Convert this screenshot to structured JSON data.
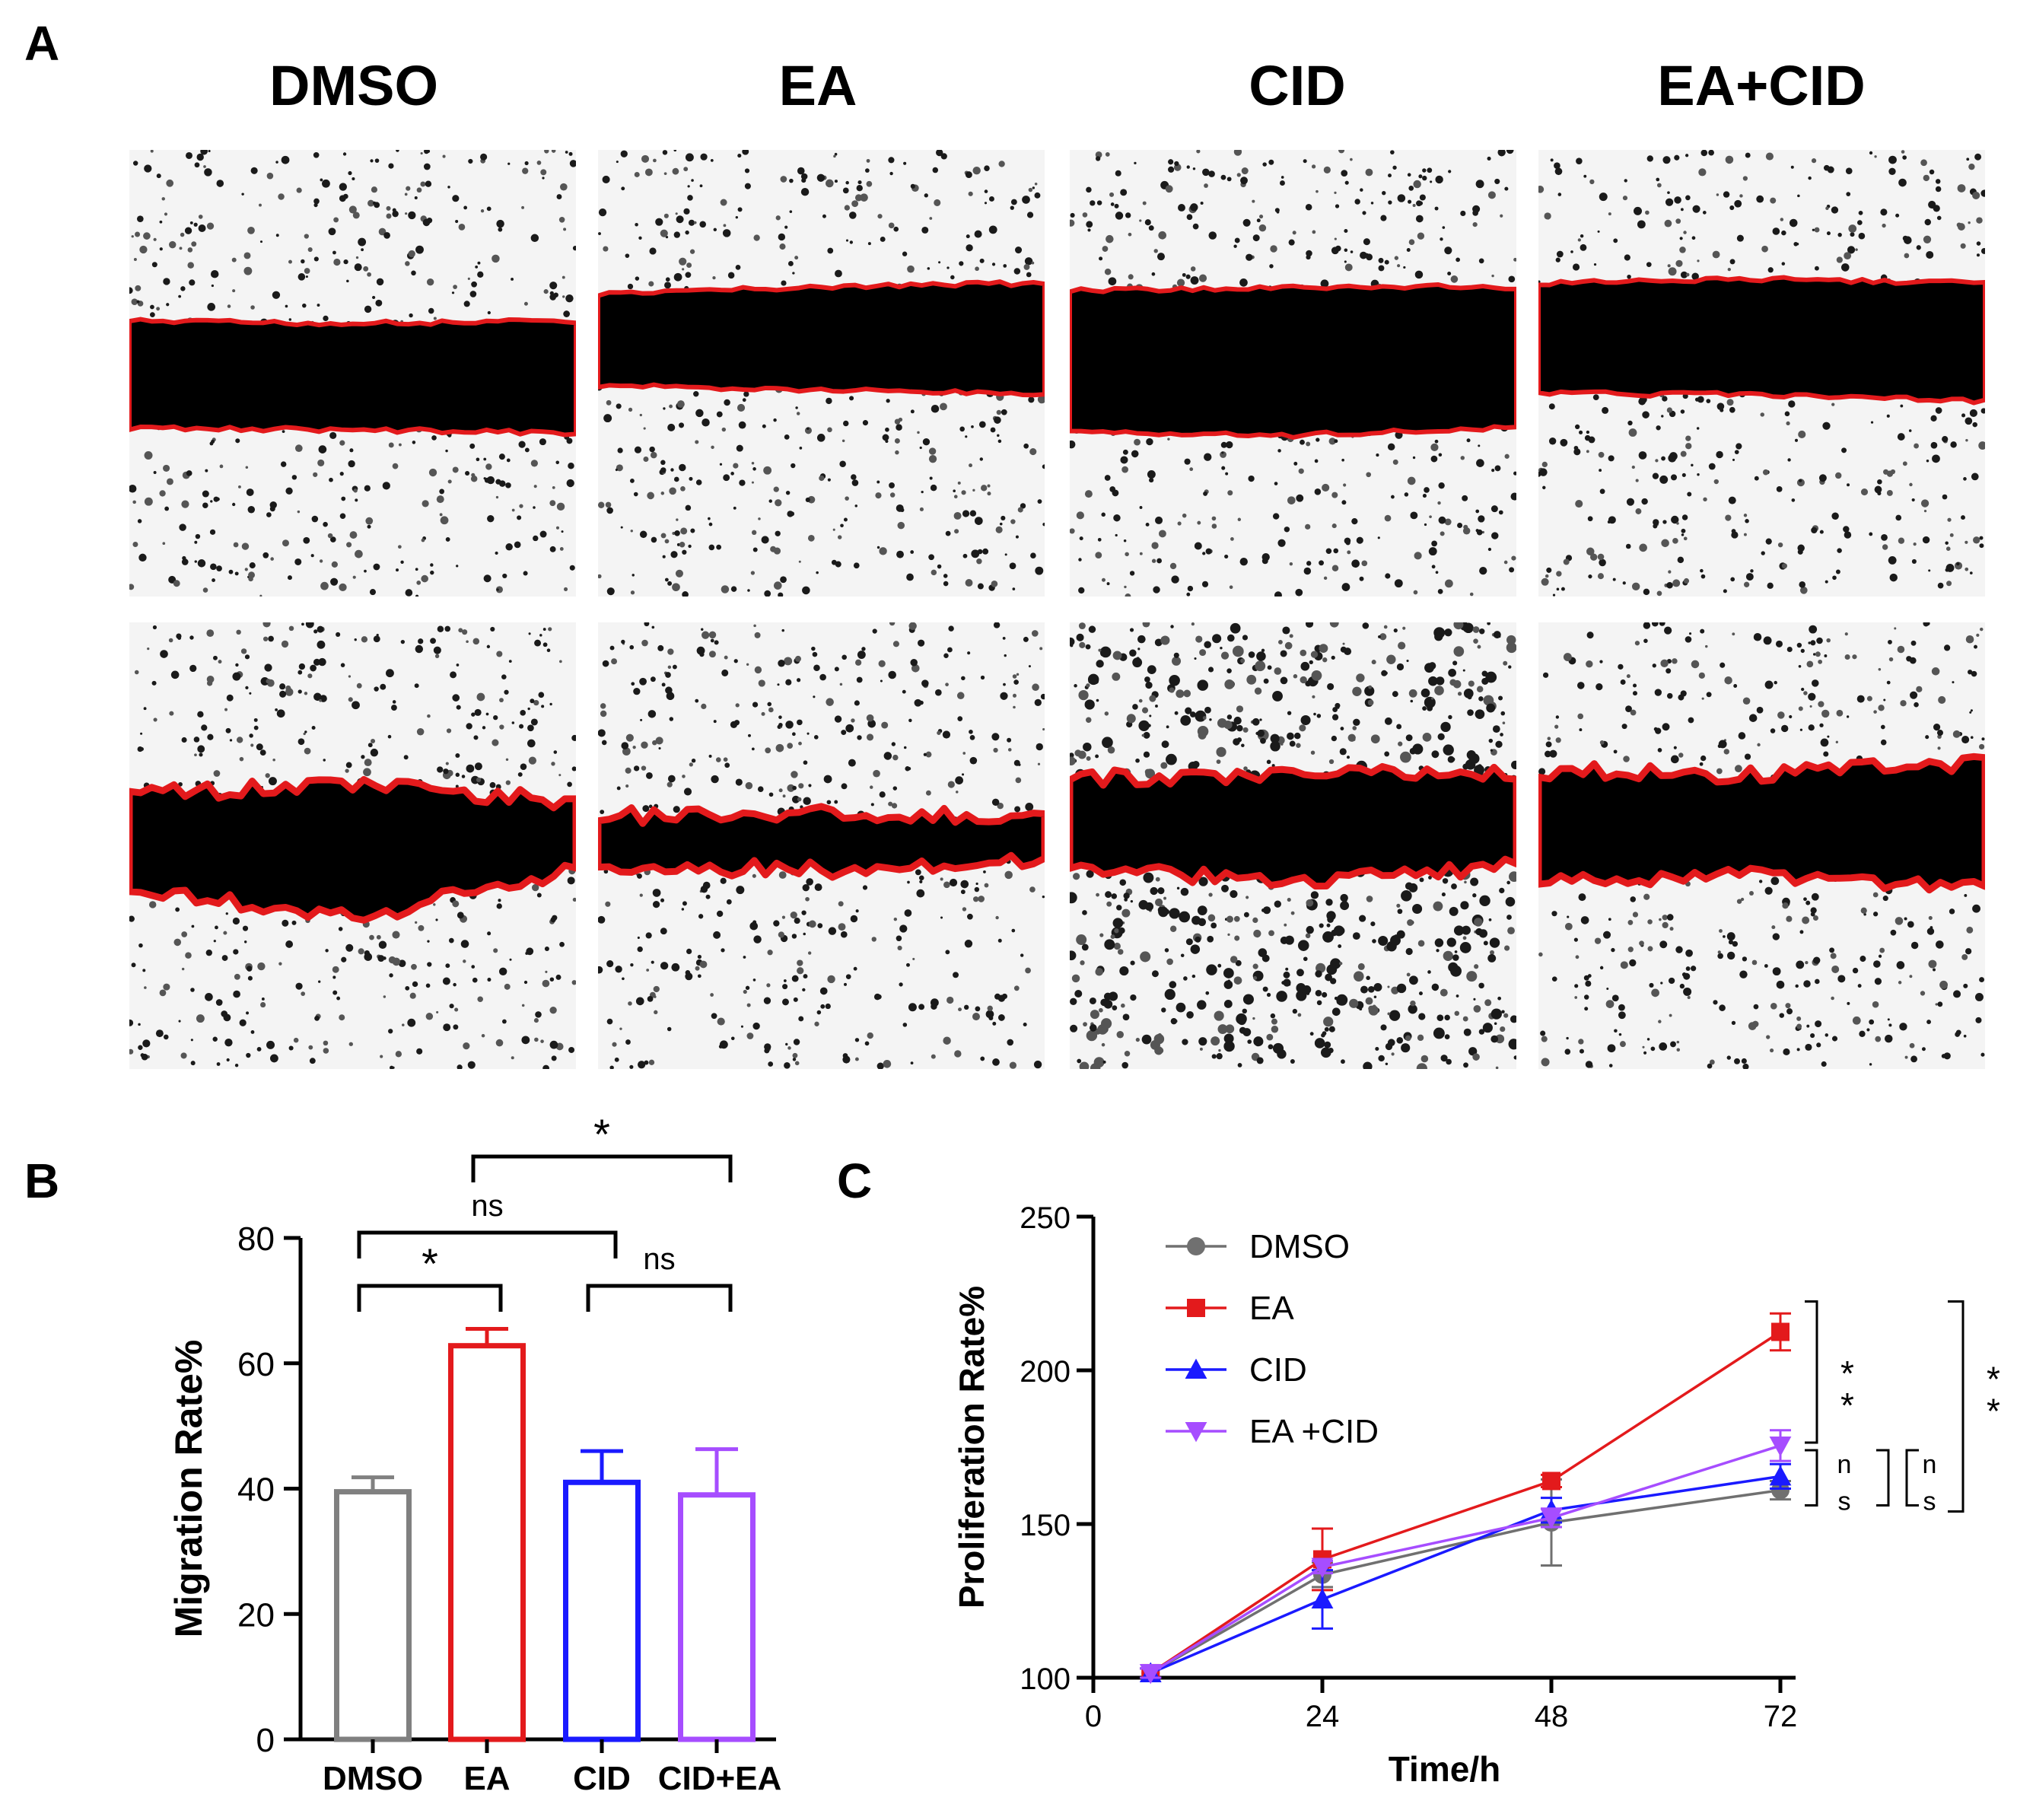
{
  "panel_labels": {
    "a": "A",
    "b": "B",
    "c": "C"
  },
  "panel_a": {
    "conditions": [
      "DMSO",
      "EA",
      "CID",
      "EA+CID"
    ],
    "wound_outline_color": "#e31a1c",
    "gap_color": "#000000"
  },
  "chart_data": [
    {
      "type": "bar",
      "ylabel": "Migration Rate%",
      "xlabel": "",
      "ylim": [
        0,
        80
      ],
      "yticks": [
        "0",
        "20",
        "40",
        "60",
        "80"
      ],
      "categories": [
        "DMSO",
        "EA",
        "CID",
        "CID+EA"
      ],
      "values": [
        39.5,
        62.8,
        41.0,
        39.0
      ],
      "errors": [
        2.3,
        2.7,
        5.0,
        7.3
      ],
      "colors": [
        "#808080",
        "#e31a1c",
        "#1a1aff",
        "#a64dff"
      ],
      "annotations": [
        {
          "from": "DMSO",
          "to": "EA",
          "label": "*"
        },
        {
          "from": "DMSO",
          "to": "CID",
          "label": "ns"
        },
        {
          "from": "CID",
          "to": "CID+EA",
          "label": "ns"
        },
        {
          "from": "EA",
          "to": "CID+EA",
          "label": "*"
        }
      ]
    },
    {
      "type": "line",
      "xlabel": "Time/h",
      "ylabel": "Proliferation Rate%",
      "xlim": [
        0,
        72
      ],
      "ylim": [
        100,
        250
      ],
      "xticks": [
        "0",
        "24",
        "48",
        "72"
      ],
      "yticks": [
        "100",
        "150",
        "200",
        "250"
      ],
      "legend": "top-left",
      "series": [
        {
          "name": "DMSO",
          "color": "#707070",
          "marker": "circle",
          "x": [
            6,
            24,
            48,
            72
          ],
          "y": [
            101.5,
            133.5,
            150.5,
            161.0
          ],
          "err": [
            1.5,
            4.0,
            14.0,
            3.0
          ]
        },
        {
          "name": "EA",
          "color": "#e31a1c",
          "marker": "square",
          "x": [
            6,
            24,
            48,
            72
          ],
          "y": [
            101.5,
            138.5,
            164.0,
            212.5
          ],
          "err": [
            1.5,
            10.0,
            2.0,
            6.0
          ]
        },
        {
          "name": "CID",
          "color": "#1a1aff",
          "marker": "triangle-up",
          "x": [
            6,
            24,
            48,
            72
          ],
          "y": [
            101.5,
            125.5,
            154.5,
            165.5
          ],
          "err": [
            1.5,
            9.5,
            4.0,
            4.0
          ]
        },
        {
          "name": "EA +CID",
          "color": "#a64dff",
          "marker": "triangle-down",
          "x": [
            6,
            24,
            48,
            72
          ],
          "y": [
            101.5,
            136.0,
            152.0,
            175.5
          ],
          "err": [
            1.5,
            2.0,
            3.0,
            5.0
          ]
        }
      ],
      "significance": [
        {
          "label_top": "*",
          "label_bottom": "*"
        },
        {
          "label_top": "n",
          "label_bottom": "s"
        },
        {
          "label_top": "n",
          "label_bottom": "s"
        },
        {
          "label_top": "*",
          "label_bottom": "*"
        }
      ]
    }
  ]
}
